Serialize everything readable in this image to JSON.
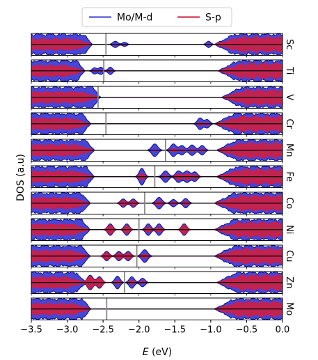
{
  "chart_data": {
    "type": "area",
    "xlabel": "E (eV)",
    "xlabel_var": "E",
    "xlabel_unit": " (eV)",
    "ylabel": "DOS (a.u)",
    "xlim": [
      -3.5,
      0.0
    ],
    "xticks": [
      "-3.5",
      "-3.0",
      "-2.5",
      "-2.0",
      "-1.5",
      "-1.0",
      "-0.5",
      "0.0"
    ],
    "xtick_values": [
      -3.5,
      -3.0,
      -2.5,
      -2.0,
      -1.5,
      -1.0,
      -0.5,
      0.0
    ],
    "legend": {
      "position": "top-center",
      "entries": [
        {
          "name": "Mo/M-d",
          "color": "#3b3bd6"
        },
        {
          "name": "S-p",
          "color": "#cc1a3a"
        }
      ]
    },
    "colors": {
      "mo_fill": "#4646d8",
      "mo_edge": "#10108a",
      "s_fill": "#c8224a",
      "s_edge": "#e8132f",
      "marker": "#888888"
    },
    "panels": [
      {
        "label": "Sc",
        "vbm": -2.65,
        "marker": -2.46,
        "cbm": -0.95,
        "features": [
          {
            "e": -2.33,
            "a": 0.3,
            "w": 0.035,
            "s": 0.14
          },
          {
            "e": -2.2,
            "a": 0.2,
            "w": 0.03,
            "s": 0.15
          },
          {
            "e": -1.03,
            "a": 0.3,
            "w": 0.03,
            "s": 0.15
          }
        ]
      },
      {
        "label": "Ti",
        "vbm": -2.75,
        "marker": -2.49,
        "cbm": -0.9,
        "features": [
          {
            "e": -2.62,
            "a": 0.3,
            "w": 0.03,
            "s": 0.15
          },
          {
            "e": -2.53,
            "a": 0.35,
            "w": 0.03,
            "s": 0.14
          },
          {
            "e": -2.4,
            "a": 0.35,
            "w": 0.03,
            "s": 0.16
          }
        ]
      },
      {
        "label": "V",
        "vbm": -2.57,
        "marker": -2.57,
        "cbm": -0.85,
        "features": [
          {
            "e": -2.68,
            "a": 0.4,
            "w": 0.03,
            "s": 0.14
          },
          {
            "e": -2.6,
            "a": 0.35,
            "w": 0.03,
            "s": 0.14
          }
        ]
      },
      {
        "label": "Cr",
        "vbm": -2.67,
        "marker": -2.46,
        "cbm": -0.95,
        "features": [
          {
            "e": -1.15,
            "a": 0.55,
            "w": 0.035,
            "s": 0.25
          },
          {
            "e": -1.05,
            "a": 0.4,
            "w": 0.035,
            "s": 0.22
          }
        ]
      },
      {
        "label": "Mn",
        "vbm": -2.62,
        "marker": -1.63,
        "cbm": -0.92,
        "features": [
          {
            "e": -1.78,
            "a": 0.6,
            "w": 0.04,
            "s": 0.08
          },
          {
            "e": -1.52,
            "a": 0.6,
            "w": 0.04,
            "s": 0.2
          },
          {
            "e": -1.4,
            "a": 0.45,
            "w": 0.035,
            "s": 0.18
          },
          {
            "e": -1.26,
            "a": 0.5,
            "w": 0.04,
            "s": 0.18
          },
          {
            "e": -1.12,
            "a": 0.45,
            "w": 0.035,
            "s": 0.18
          }
        ]
      },
      {
        "label": "Fe",
        "vbm": -2.62,
        "marker": -1.78,
        "cbm": -0.92,
        "features": [
          {
            "e": -1.96,
            "a": 0.8,
            "w": 0.035,
            "s": 0.35
          },
          {
            "e": -1.63,
            "a": 0.55,
            "w": 0.04,
            "s": 0.2
          },
          {
            "e": -1.45,
            "a": 0.55,
            "w": 0.04,
            "s": 0.45
          },
          {
            "e": -1.33,
            "a": 0.55,
            "w": 0.04,
            "s": 0.5
          },
          {
            "e": -1.22,
            "a": 0.45,
            "w": 0.035,
            "s": 0.4
          }
        ]
      },
      {
        "label": "Co",
        "vbm": -2.68,
        "marker": -1.92,
        "cbm": -0.95,
        "features": [
          {
            "e": -2.22,
            "a": 0.4,
            "w": 0.035,
            "s": 0.6
          },
          {
            "e": -2.08,
            "a": 0.4,
            "w": 0.035,
            "s": 0.55
          },
          {
            "e": -1.72,
            "a": 0.55,
            "w": 0.04,
            "s": 0.35
          },
          {
            "e": -1.52,
            "a": 0.35,
            "w": 0.035,
            "s": 0.3
          },
          {
            "e": -1.35,
            "a": 0.45,
            "w": 0.035,
            "s": 0.35
          }
        ]
      },
      {
        "label": "Ni",
        "vbm": -2.68,
        "marker": -2.0,
        "cbm": -0.95,
        "features": [
          {
            "e": -2.4,
            "a": 0.55,
            "w": 0.035,
            "s": 0.75
          },
          {
            "e": -2.17,
            "a": 0.55,
            "w": 0.035,
            "s": 0.65
          },
          {
            "e": -1.87,
            "a": 0.55,
            "w": 0.035,
            "s": 0.45
          },
          {
            "e": -1.72,
            "a": 0.55,
            "w": 0.035,
            "s": 0.45
          },
          {
            "e": -1.37,
            "a": 0.55,
            "w": 0.035,
            "s": 0.8
          }
        ]
      },
      {
        "label": "Cu",
        "vbm": -2.68,
        "marker": -2.03,
        "cbm": -0.95,
        "features": [
          {
            "e": -2.45,
            "a": 0.45,
            "w": 0.035,
            "s": 0.75
          },
          {
            "e": -2.28,
            "a": 0.45,
            "w": 0.035,
            "s": 0.65
          },
          {
            "e": -2.15,
            "a": 0.45,
            "w": 0.035,
            "s": 0.65
          },
          {
            "e": -1.92,
            "a": 0.6,
            "w": 0.04,
            "s": 0.3
          }
        ]
      },
      {
        "label": "Zn",
        "vbm": -2.75,
        "marker": -2.2,
        "cbm": -0.92,
        "features": [
          {
            "e": -2.68,
            "a": 0.7,
            "w": 0.04,
            "s": 0.85
          },
          {
            "e": -2.55,
            "a": 0.55,
            "w": 0.035,
            "s": 0.8
          },
          {
            "e": -2.3,
            "a": 0.6,
            "w": 0.035,
            "s": 0.25
          },
          {
            "e": -2.1,
            "a": 0.55,
            "w": 0.035,
            "s": 0.3
          },
          {
            "e": -1.95,
            "a": 0.4,
            "w": 0.035,
            "s": 0.25
          }
        ]
      },
      {
        "label": "Mo",
        "vbm": -2.67,
        "marker": -2.45,
        "cbm": -0.95,
        "features": []
      }
    ]
  }
}
